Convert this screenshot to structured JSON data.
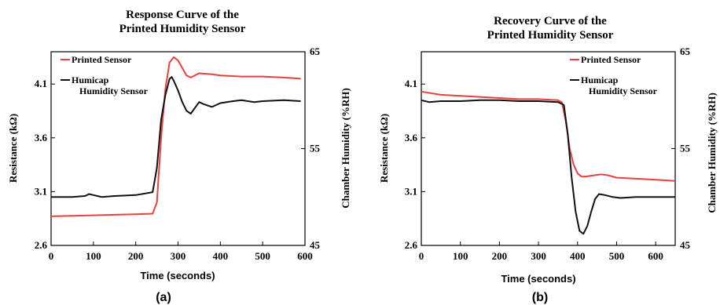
{
  "chart_data": [
    {
      "type": "line",
      "panel_label": "(a)",
      "title": [
        "Response Curve of the",
        "Printed Humidity Sensor"
      ],
      "xlabel": "Time (seconds)",
      "ylabel": "Resistance (kΩ)",
      "y2label": "Chamber Humidity (%RH)",
      "xlim": [
        0,
        600
      ],
      "ylim": [
        2.6,
        4.4
      ],
      "y2lim": [
        45,
        65
      ],
      "xticks": [
        "0",
        "100",
        "200",
        "300",
        "400",
        "500",
        "600"
      ],
      "yticks": [
        "2.6",
        "3.1",
        "3.6",
        "4.1"
      ],
      "y2ticks": [
        "45",
        "55",
        "65"
      ],
      "legend_placement": "top-left",
      "colors": {
        "red": "#e8403f",
        "black": "#111111"
      },
      "series": [
        {
          "name": "Printed Sensor",
          "legend_lines": [
            "Printed Sensor"
          ],
          "axis": "left",
          "color": "#e8403f",
          "x": [
            0,
            50,
            100,
            150,
            200,
            240,
            250,
            260,
            270,
            280,
            290,
            300,
            310,
            320,
            330,
            350,
            380,
            400,
            450,
            500,
            550,
            590
          ],
          "y": [
            2.87,
            2.875,
            2.88,
            2.885,
            2.89,
            2.895,
            3.0,
            3.6,
            4.05,
            4.3,
            4.35,
            4.32,
            4.25,
            4.18,
            4.16,
            4.2,
            4.19,
            4.18,
            4.17,
            4.17,
            4.16,
            4.15
          ]
        },
        {
          "name": "Humicap Humidity Sensor",
          "legend_lines": [
            "Humicap",
            "Humidity Sensor"
          ],
          "axis": "right",
          "color": "#111111",
          "x": [
            0,
            50,
            80,
            90,
            100,
            120,
            150,
            200,
            240,
            250,
            260,
            270,
            280,
            285,
            290,
            300,
            310,
            320,
            330,
            340,
            350,
            360,
            380,
            400,
            430,
            450,
            480,
            500,
            550,
            590
          ],
          "y": [
            50.0,
            50.0,
            50.1,
            50.3,
            50.2,
            50.0,
            50.1,
            50.2,
            50.5,
            53.0,
            58.0,
            60.5,
            62.2,
            62.4,
            62.0,
            61.0,
            59.8,
            58.9,
            58.6,
            59.2,
            59.8,
            59.6,
            59.3,
            59.7,
            59.9,
            60.0,
            59.8,
            59.9,
            60.0,
            59.9
          ]
        }
      ]
    },
    {
      "type": "line",
      "panel_label": "(b)",
      "title": [
        "Recovery Curve of the",
        "Printed Humidity Sensor"
      ],
      "xlabel": "Time (seconds)",
      "ylabel": "Resistance (kΩ)",
      "y2label": "Chamber Humidity (%RH)",
      "xlim": [
        0,
        650
      ],
      "ylim": [
        2.6,
        4.4
      ],
      "y2lim": [
        45,
        65
      ],
      "xticks": [
        "0",
        "100",
        "200",
        "300",
        "400",
        "500",
        "600"
      ],
      "yticks": [
        "2.6",
        "3.1",
        "3.6",
        "4.1"
      ],
      "y2ticks": [
        "45",
        "55",
        "65"
      ],
      "legend_placement": "top-right",
      "colors": {
        "red": "#e8403f",
        "black": "#111111"
      },
      "series": [
        {
          "name": "Printed Sensor",
          "legend_lines": [
            "Printed Sensor"
          ],
          "axis": "left",
          "color": "#e8403f",
          "x": [
            0,
            50,
            100,
            150,
            200,
            250,
            300,
            350,
            360,
            370,
            380,
            390,
            400,
            410,
            420,
            440,
            460,
            480,
            500,
            550,
            600,
            650
          ],
          "y": [
            4.03,
            4.0,
            3.99,
            3.98,
            3.97,
            3.96,
            3.96,
            3.95,
            3.93,
            3.75,
            3.5,
            3.35,
            3.27,
            3.24,
            3.24,
            3.25,
            3.26,
            3.25,
            3.23,
            3.22,
            3.21,
            3.2
          ]
        },
        {
          "name": "Humicap Humidity Sensor",
          "legend_lines": [
            "Humicap",
            "Humidity Sensor"
          ],
          "axis": "right",
          "color": "#111111",
          "x": [
            0,
            20,
            50,
            100,
            150,
            200,
            250,
            300,
            350,
            365,
            375,
            385,
            395,
            405,
            415,
            425,
            435,
            445,
            455,
            470,
            490,
            510,
            550,
            600,
            650
          ],
          "y": [
            60.0,
            59.8,
            59.9,
            59.9,
            60.0,
            60.0,
            59.9,
            59.9,
            59.8,
            59.5,
            56.5,
            52.0,
            48.5,
            46.5,
            46.2,
            47.0,
            48.5,
            49.8,
            50.3,
            50.2,
            50.0,
            49.9,
            50.0,
            50.0,
            50.0
          ]
        }
      ]
    }
  ]
}
